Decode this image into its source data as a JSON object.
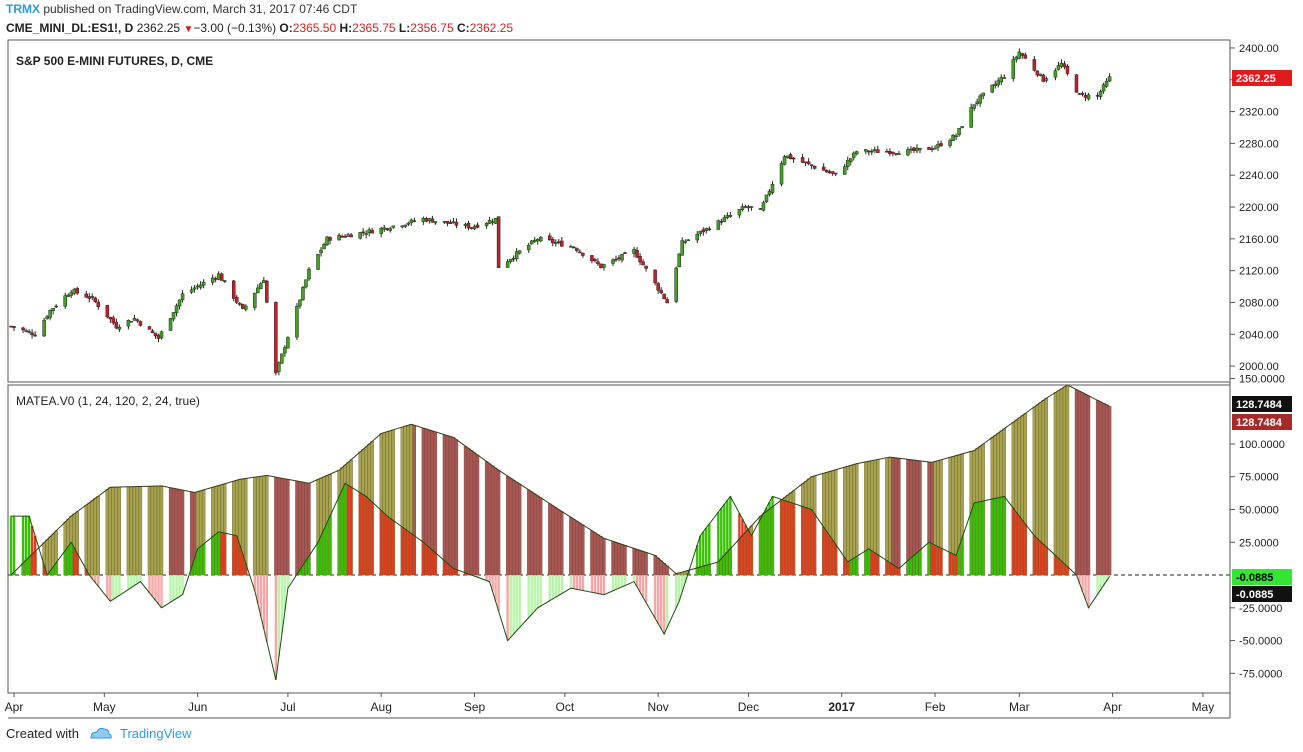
{
  "header": {
    "brand": "TRMX",
    "published": " published on TradingView.com, March 31, 2017 07:46 CDT",
    "symbol": "CME_MINI_DL:ES1!, D",
    "price": "2362.25",
    "change": "−3.00 (−0.13%)",
    "o_label": "O:",
    "o_value": "2365.50",
    "h_label": "H:",
    "h_value": "2365.75",
    "l_label": "L:",
    "l_value": "2356.75",
    "c_label": "C:",
    "c_value": "2362.25"
  },
  "footer": {
    "created_with": "Created with",
    "brand": "TradingView"
  },
  "colors": {
    "up": "#3fa51c",
    "down": "#c51f2a",
    "olive": "#a8a24d",
    "maroon": "#ad5555",
    "green_hist": "#35c000",
    "red_hist": "#e23b1b",
    "osc_up": "#b7f5a8",
    "osc_down": "#f6a6a6"
  },
  "chart_data": [
    {
      "type": "candlestick",
      "title": "S&P 500 E-MINI FUTURES, D, CME",
      "ylim": [
        1980,
        2410
      ],
      "yticks": [
        2000,
        2040,
        2080,
        2120,
        2160,
        2200,
        2240,
        2280,
        2320,
        2360,
        2400
      ],
      "ytick_labels": [
        "2000.00",
        "2040.00",
        "2080.00",
        "2120.00",
        "2160.00",
        "2200.00",
        "2240.00",
        "2280.00",
        "2320.00",
        "2360.00",
        "2400.00"
      ],
      "last_price_label": "2362.25",
      "xticks": [
        "Apr",
        "May",
        "Jun",
        "Jul",
        "Aug",
        "Sep",
        "Oct",
        "Nov",
        "Dec",
        "2017",
        "Feb",
        "Mar",
        "Apr",
        "May"
      ],
      "close_path": [
        [
          "2016-03-31",
          2050
        ],
        [
          "2016-04-08",
          2040
        ],
        [
          "2016-04-13",
          2070
        ],
        [
          "2016-04-20",
          2095
        ],
        [
          "2016-04-27",
          2085
        ],
        [
          "2016-05-05",
          2050
        ],
        [
          "2016-05-11",
          2060
        ],
        [
          "2016-05-19",
          2035
        ],
        [
          "2016-05-27",
          2090
        ],
        [
          "2016-06-08",
          2115
        ],
        [
          "2016-06-16",
          2070
        ],
        [
          "2016-06-23",
          2110
        ],
        [
          "2016-06-27",
          1990
        ],
        [
          "2016-07-08",
          2120
        ],
        [
          "2016-07-14",
          2160
        ],
        [
          "2016-07-29",
          2170
        ],
        [
          "2016-08-15",
          2185
        ],
        [
          "2016-08-31",
          2175
        ],
        [
          "2016-09-08",
          2185
        ],
        [
          "2016-09-09",
          2125
        ],
        [
          "2016-09-22",
          2160
        ],
        [
          "2016-10-04",
          2150
        ],
        [
          "2016-10-13",
          2125
        ],
        [
          "2016-10-24",
          2145
        ],
        [
          "2016-11-04",
          2080
        ],
        [
          "2016-11-09",
          2155
        ],
        [
          "2016-11-30",
          2200
        ],
        [
          "2016-12-05",
          2195
        ],
        [
          "2016-12-13",
          2265
        ],
        [
          "2016-12-30",
          2240
        ],
        [
          "2017-01-06",
          2270
        ],
        [
          "2017-01-24",
          2270
        ],
        [
          "2017-02-01",
          2275
        ],
        [
          "2017-02-08",
          2290
        ],
        [
          "2017-02-14",
          2330
        ],
        [
          "2017-02-24",
          2365
        ],
        [
          "2017-03-01",
          2395
        ],
        [
          "2017-03-09",
          2360
        ],
        [
          "2017-03-15",
          2380
        ],
        [
          "2017-03-21",
          2340
        ],
        [
          "2017-03-27",
          2340
        ],
        [
          "2017-03-31",
          2362
        ]
      ]
    },
    {
      "type": "bar",
      "title": "MATEA.V0 (1, 24, 120, 2, 24, true)",
      "ylim": [
        -90,
        145
      ],
      "yticks": [
        -75,
        -50,
        -25,
        0,
        25,
        50,
        75,
        100,
        150
      ],
      "ytick_labels": [
        "-75.0000",
        "-50.0000",
        "-25.0000",
        "",
        "25.0000",
        "50.0000",
        "75.0000",
        "100.0000",
        "150.0000"
      ],
      "value_labels": [
        "128.7484",
        "128.7484",
        "-0.0885",
        "-0.0885"
      ],
      "slow_envelope": [
        [
          "2016-03-31",
          0
        ],
        [
          "2016-04-08",
          18
        ],
        [
          "2016-04-20",
          45
        ],
        [
          "2016-05-03",
          67
        ],
        [
          "2016-05-20",
          68
        ],
        [
          "2016-05-31",
          63
        ],
        [
          "2016-06-15",
          73
        ],
        [
          "2016-06-24",
          76
        ],
        [
          "2016-07-08",
          70
        ],
        [
          "2016-07-18",
          80
        ],
        [
          "2016-08-01",
          108
        ],
        [
          "2016-08-11",
          115
        ],
        [
          "2016-08-25",
          105
        ],
        [
          "2016-09-09",
          80
        ],
        [
          "2016-09-29",
          50
        ],
        [
          "2016-10-14",
          28
        ],
        [
          "2016-10-31",
          15
        ],
        [
          "2016-11-07",
          1
        ],
        [
          "2016-11-21",
          10
        ],
        [
          "2016-12-05",
          45
        ],
        [
          "2016-12-22",
          75
        ],
        [
          "2017-01-06",
          85
        ],
        [
          "2017-01-17",
          90
        ],
        [
          "2017-01-31",
          86
        ],
        [
          "2017-02-14",
          95
        ],
        [
          "2017-03-10",
          135
        ],
        [
          "2017-03-17",
          145
        ],
        [
          "2017-03-31",
          128.7
        ]
      ],
      "fast_oscillator": [
        [
          "2016-03-31",
          45
        ],
        [
          "2016-04-06",
          45
        ],
        [
          "2016-04-12",
          0
        ],
        [
          "2016-04-20",
          25
        ],
        [
          "2016-04-26",
          0
        ],
        [
          "2016-05-03",
          -20
        ],
        [
          "2016-05-13",
          -5
        ],
        [
          "2016-05-20",
          -25
        ],
        [
          "2016-05-27",
          -15
        ],
        [
          "2016-06-01",
          20
        ],
        [
          "2016-06-08",
          33
        ],
        [
          "2016-06-14",
          30
        ],
        [
          "2016-06-20",
          -12
        ],
        [
          "2016-06-27",
          -80
        ],
        [
          "2016-07-01",
          -10
        ],
        [
          "2016-07-11",
          25
        ],
        [
          "2016-07-20",
          70
        ],
        [
          "2016-07-27",
          60
        ],
        [
          "2016-08-03",
          45
        ],
        [
          "2016-08-15",
          25
        ],
        [
          "2016-08-25",
          5
        ],
        [
          "2016-09-06",
          -5
        ],
        [
          "2016-09-12",
          -50
        ],
        [
          "2016-09-22",
          -25
        ],
        [
          "2016-10-03",
          -10
        ],
        [
          "2016-10-14",
          -15
        ],
        [
          "2016-10-24",
          -5
        ],
        [
          "2016-11-03",
          -45
        ],
        [
          "2016-11-08",
          -20
        ],
        [
          "2016-11-15",
          30
        ],
        [
          "2016-11-25",
          60
        ],
        [
          "2016-12-02",
          30
        ],
        [
          "2016-12-09",
          60
        ],
        [
          "2016-12-22",
          50
        ],
        [
          "2017-01-03",
          10
        ],
        [
          "2017-01-10",
          20
        ],
        [
          "2017-01-20",
          5
        ],
        [
          "2017-01-30",
          25
        ],
        [
          "2017-02-08",
          15
        ],
        [
          "2017-02-14",
          55
        ],
        [
          "2017-02-24",
          60
        ],
        [
          "2017-03-06",
          30
        ],
        [
          "2017-03-13",
          15
        ],
        [
          "2017-03-20",
          0
        ],
        [
          "2017-03-24",
          -25
        ],
        [
          "2017-03-31",
          -1
        ]
      ]
    }
  ]
}
